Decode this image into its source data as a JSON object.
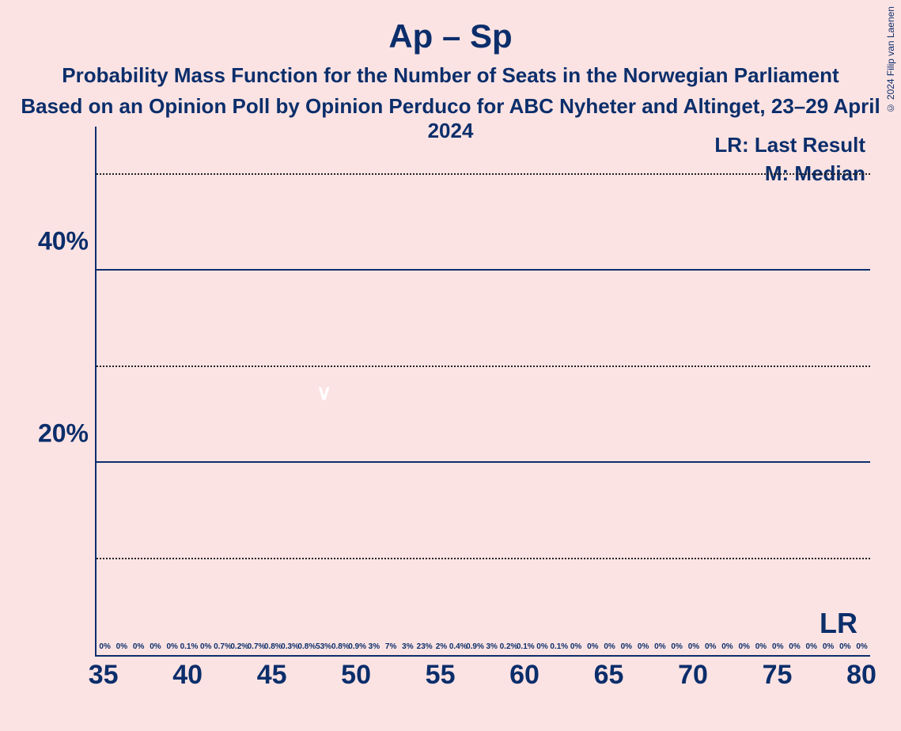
{
  "title": "Ap – Sp",
  "subtitle": "Probability Mass Function for the Number of Seats in the Norwegian Parliament",
  "byline": "Based on an Opinion Poll by Opinion Perduco for ABC Nyheter and Altinget, 23–29 April 2024",
  "copyright": "© 2024 Filip van Laenen",
  "legend_lr": "LR: Last Result",
  "legend_m": "M: Median",
  "lr_text": "LR",
  "chart": {
    "type": "bar",
    "ymax": 55,
    "gridlines": [
      {
        "v": 50,
        "style": "dotted"
      },
      {
        "v": 40,
        "style": "solid"
      },
      {
        "v": 30,
        "style": "dotted"
      },
      {
        "v": 20,
        "style": "solid"
      },
      {
        "v": 10,
        "style": "dotted"
      }
    ],
    "ylabels": [
      {
        "v": 40,
        "t": "40%"
      },
      {
        "v": 20,
        "t": "20%"
      }
    ],
    "median_x": 48,
    "median_glyph": "∨",
    "colors": {
      "red": "#e10f21",
      "green": "#11a22d",
      "axis": "#0b2e6b",
      "bg": "#fce3e3"
    },
    "bars": [
      {
        "x": 35,
        "v": 0,
        "l": "0%"
      },
      {
        "x": 36,
        "v": 0,
        "l": "0%"
      },
      {
        "x": 37,
        "v": 0,
        "l": "0%"
      },
      {
        "x": 38,
        "v": 0,
        "l": "0%"
      },
      {
        "x": 39,
        "v": 0,
        "l": "0%"
      },
      {
        "x": 40,
        "v": 0.1,
        "l": "0.1%"
      },
      {
        "x": 41,
        "v": 0,
        "l": "0%"
      },
      {
        "x": 42,
        "v": 0.7,
        "l": "0.7%"
      },
      {
        "x": 43,
        "v": 0.2,
        "l": "0.2%",
        "c": "g"
      },
      {
        "x": 44,
        "v": 0.7,
        "l": "0.7%"
      },
      {
        "x": 45,
        "v": 0.8,
        "l": "0.8%",
        "c": "g"
      },
      {
        "x": 46,
        "v": 0.3,
        "l": "0.3%"
      },
      {
        "x": 47,
        "v": 0.8,
        "l": "0.8%",
        "c": "g"
      },
      {
        "x": 48,
        "v": 53,
        "l": "53%"
      },
      {
        "x": 49,
        "v": 0.8,
        "l": "0.8%"
      },
      {
        "x": 50,
        "v": 0.9,
        "l": "0.9%"
      },
      {
        "x": 51,
        "v": 3,
        "l": "3%",
        "c": "g"
      },
      {
        "x": 52,
        "v": 7,
        "l": "7%"
      },
      {
        "x": 53,
        "v": 3,
        "l": "3%",
        "c": "g"
      },
      {
        "x": 54,
        "v": 23,
        "l": "23%"
      },
      {
        "x": 55,
        "v": 2,
        "l": "2%",
        "c": "g"
      },
      {
        "x": 56,
        "v": 0.4,
        "l": "0.4%"
      },
      {
        "x": 57,
        "v": 0.9,
        "l": "0.9%",
        "c": "g"
      },
      {
        "x": 58,
        "v": 3,
        "l": "3%"
      },
      {
        "x": 59,
        "v": 0.2,
        "l": "0.2%",
        "c": "g"
      },
      {
        "x": 60,
        "v": 0.1,
        "l": "0.1%"
      },
      {
        "x": 61,
        "v": 0,
        "l": "0%"
      },
      {
        "x": 62,
        "v": 0.1,
        "l": "0.1%"
      },
      {
        "x": 63,
        "v": 0,
        "l": "0%"
      },
      {
        "x": 64,
        "v": 0,
        "l": "0%"
      },
      {
        "x": 65,
        "v": 0,
        "l": "0%"
      },
      {
        "x": 66,
        "v": 0,
        "l": "0%"
      },
      {
        "x": 67,
        "v": 0,
        "l": "0%"
      },
      {
        "x": 68,
        "v": 0,
        "l": "0%"
      },
      {
        "x": 69,
        "v": 0,
        "l": "0%"
      },
      {
        "x": 70,
        "v": 0,
        "l": "0%"
      },
      {
        "x": 71,
        "v": 0,
        "l": "0%"
      },
      {
        "x": 72,
        "v": 0,
        "l": "0%"
      },
      {
        "x": 73,
        "v": 0,
        "l": "0%"
      },
      {
        "x": 74,
        "v": 0,
        "l": "0%"
      },
      {
        "x": 75,
        "v": 0,
        "l": "0%"
      },
      {
        "x": 76,
        "v": 0,
        "l": "0%"
      },
      {
        "x": 77,
        "v": 0,
        "l": "0%"
      },
      {
        "x": 78,
        "v": 0,
        "l": "0%"
      },
      {
        "x": 79,
        "v": 0,
        "l": "0%"
      },
      {
        "x": 80,
        "v": 0,
        "l": "0%"
      }
    ],
    "xticks": [
      35,
      40,
      45,
      50,
      55,
      60,
      65,
      70,
      75,
      80
    ]
  }
}
